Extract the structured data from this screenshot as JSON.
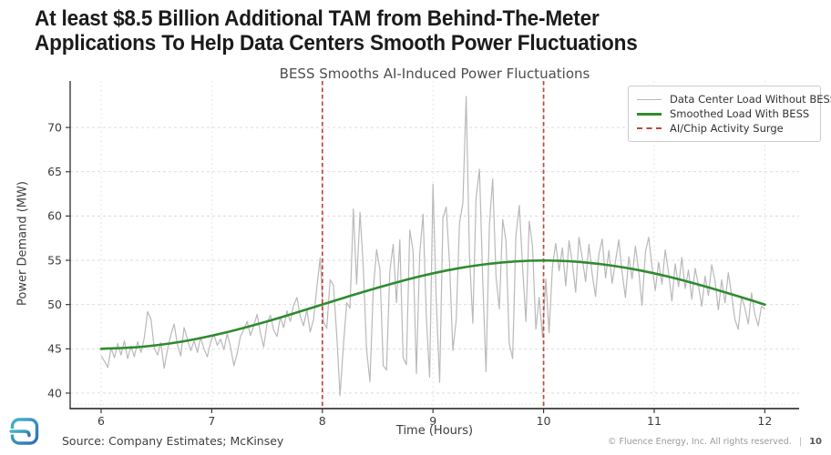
{
  "slide": {
    "title_line1": "At least $8.5 Billion Additional TAM from Behind-The-Meter",
    "title_line2": "Applications To Help Data Centers Smooth Power Fluctuations"
  },
  "footer": {
    "source": "Source: Company Estimates; McKinsey",
    "copyright": "© Fluence Energy, Inc. All rights reserved.",
    "separator": "|",
    "page_number": "10"
  },
  "colors": {
    "without_bess": "#b9b9b9",
    "with_bess": "#2f8b2f",
    "surge_line": "#c2453a",
    "grid_h": "#d9d9d9",
    "grid_v": "#e3e3e3",
    "axis": "#3a3a3a",
    "tick_text": "#3d3d3d",
    "logo_teal": "#44b7c6",
    "logo_blue": "#2d6cb5"
  },
  "chart_data": {
    "type": "line",
    "title": "BESS Smooths AI-Induced Power Fluctuations",
    "xlabel": "Time (Hours)",
    "ylabel": "Power Demand (MW)",
    "xlim": [
      5.72,
      12.31
    ],
    "ylim": [
      38.25,
      75.25
    ],
    "xticks": [
      6,
      7,
      8,
      9,
      10,
      11,
      12
    ],
    "yticks": [
      40,
      45,
      50,
      55,
      60,
      65,
      70
    ],
    "grid": true,
    "legend_position": "upper right",
    "series": [
      {
        "name": "Data Center Load Without BESS",
        "color": "#b9b9b9",
        "style": "solid",
        "width": 1.2,
        "x_start": 6.0,
        "x_step": 0.03,
        "values": [
          44.2,
          43.6,
          42.9,
          45.1,
          44.0,
          45.6,
          44.3,
          45.9,
          43.9,
          45.3,
          44.1,
          45.8,
          44.6,
          46.2,
          49.2,
          48.4,
          45.1,
          44.3,
          45.7,
          42.8,
          44.9,
          46.6,
          47.8,
          45.4,
          44.2,
          47.4,
          46.1,
          44.8,
          45.9,
          44.6,
          46.3,
          45.0,
          44.1,
          45.8,
          46.6,
          45.4,
          46.1,
          44.9,
          46.7,
          45.2,
          43.1,
          44.5,
          46.4,
          47.2,
          48.1,
          46.5,
          47.6,
          48.9,
          46.8,
          45.2,
          47.9,
          48.8,
          47.1,
          46.4,
          48.6,
          47.4,
          49.3,
          48.1,
          49.9,
          50.8,
          48.7,
          47.6,
          49.4,
          46.9,
          48.3,
          51.9,
          55.3,
          48.1,
          47.3,
          52.8,
          52.2,
          46.5,
          39.7,
          45.3,
          50.2,
          49.6,
          60.8,
          52.3,
          60.4,
          54.2,
          44.9,
          41.3,
          51.6,
          56.2,
          54.0,
          43.1,
          42.6,
          53.7,
          56.8,
          50.2,
          57.3,
          44.0,
          43.2,
          58.4,
          56.1,
          42.2,
          55.7,
          60.2,
          48.6,
          41.8,
          63.6,
          50.4,
          41.2,
          59.8,
          61.0,
          54.6,
          44.8,
          48.3,
          59.2,
          61.5,
          73.5,
          55.6,
          47.9,
          62.1,
          65.3,
          52.7,
          42.4,
          58.9,
          64.2,
          53.1,
          49.5,
          59.6,
          57.2,
          45.6,
          43.9,
          57.8,
          61.2,
          54.3,
          48.1,
          59.4,
          56.6,
          47.2,
          50.8,
          46.3,
          52.9,
          46.8,
          54.3,
          56.9,
          53.8,
          56.4,
          52.1,
          57.2,
          54.7,
          51.4,
          57.6,
          55.2,
          52.6,
          56.8,
          53.4,
          50.9,
          55.7,
          57.4,
          53.0,
          56.1,
          52.4,
          54.9,
          57.3,
          53.6,
          50.8,
          55.4,
          52.9,
          56.6,
          53.7,
          49.9,
          55.9,
          57.6,
          54.4,
          51.6,
          54.8,
          52.3,
          56.2,
          53.5,
          50.4,
          54.6,
          52.0,
          55.3,
          51.8,
          53.9,
          50.6,
          54.1,
          52.2,
          49.8,
          53.2,
          51.0,
          54.5,
          52.7,
          49.4,
          52.8,
          50.2,
          53.6,
          51.1,
          48.3,
          47.2,
          50.9,
          49.6,
          47.8,
          51.3,
          48.9,
          47.6,
          49.8,
          49.5
        ]
      },
      {
        "name": "Smoothed Load With BESS",
        "color": "#2f8b2f",
        "style": "solid",
        "width": 2.6,
        "smooth": true,
        "x": [
          6.0,
          6.25,
          6.5,
          6.75,
          7.0,
          7.25,
          7.5,
          7.75,
          8.0,
          8.25,
          8.5,
          8.75,
          9.0,
          9.25,
          9.5,
          9.75,
          10.0,
          10.25,
          10.5,
          10.75,
          11.0,
          11.25,
          11.5,
          11.75,
          12.0
        ],
        "values": [
          45.0,
          45.1,
          45.38,
          45.84,
          46.46,
          47.22,
          48.09,
          49.02,
          50.0,
          50.98,
          51.91,
          52.78,
          53.54,
          54.16,
          54.62,
          54.9,
          55.0,
          54.9,
          54.62,
          54.16,
          53.54,
          52.78,
          51.91,
          50.98,
          50.0
        ]
      }
    ],
    "vlines": {
      "name": "AI/Chip Activity Surge",
      "color": "#c2453a",
      "style": "dashed",
      "x": [
        8,
        10
      ]
    }
  }
}
